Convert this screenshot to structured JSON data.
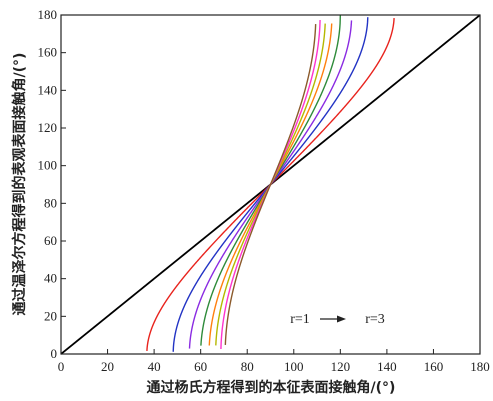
{
  "chart_data": {
    "type": "line",
    "xlabel": "通过杨氏方程得到的本征表面接触角/(°)",
    "ylabel": "通过温泽尔方程得到的表观表面接触角/(°)",
    "xlim": [
      0,
      180
    ],
    "ylim": [
      0,
      180
    ],
    "xticks": [
      0,
      20,
      40,
      60,
      80,
      100,
      120,
      140,
      160,
      180
    ],
    "yticks": [
      0,
      20,
      40,
      60,
      80,
      100,
      120,
      140,
      160,
      180
    ],
    "grid": false,
    "annotation": {
      "start_label": "r=1",
      "end_label": "r=3"
    },
    "series": [
      {
        "r": 1.0,
        "color": "#000000"
      },
      {
        "r": 1.25,
        "color": "#e8231d"
      },
      {
        "r": 1.5,
        "color": "#2233c4"
      },
      {
        "r": 1.75,
        "color": "#8a2be2"
      },
      {
        "r": 2.0,
        "color": "#2e8b3a"
      },
      {
        "r": 2.25,
        "color": "#ff7f0e"
      },
      {
        "r": 2.5,
        "color": "#b5b800"
      },
      {
        "r": 2.75,
        "color": "#ff33cc"
      },
      {
        "r": 3.0,
        "color": "#8b5a2b"
      }
    ]
  }
}
